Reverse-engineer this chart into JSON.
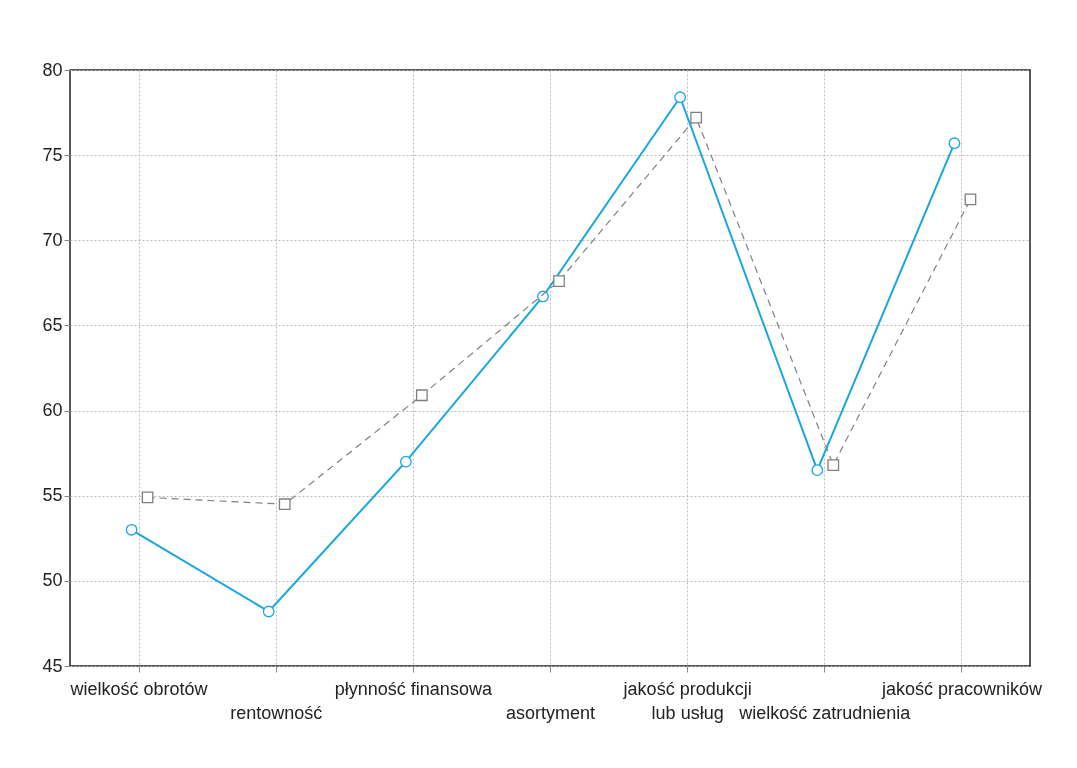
{
  "chart_data": {
    "type": "line",
    "categories": [
      "wielkość obrotów",
      "rentowność",
      "płynność finansowa",
      "asortyment",
      "jakość produkcji\nlub usług",
      "wielkość zatrudnienia",
      "jakość pracowników"
    ],
    "series": [
      {
        "color": "#1aa7e0",
        "marker": "circle",
        "line_style": "solid",
        "values": [
          53.0,
          48.2,
          57.0,
          66.7,
          78.4,
          56.5,
          75.7
        ]
      },
      {
        "color": "#808080",
        "marker": "square",
        "line_style": "dashed",
        "values": [
          54.9,
          54.5,
          60.9,
          67.6,
          77.2,
          56.8,
          72.4
        ]
      }
    ],
    "ylim": [
      45,
      80
    ],
    "yticks": [
      45,
      50,
      55,
      60,
      65,
      70,
      75,
      80
    ],
    "grid": true
  }
}
